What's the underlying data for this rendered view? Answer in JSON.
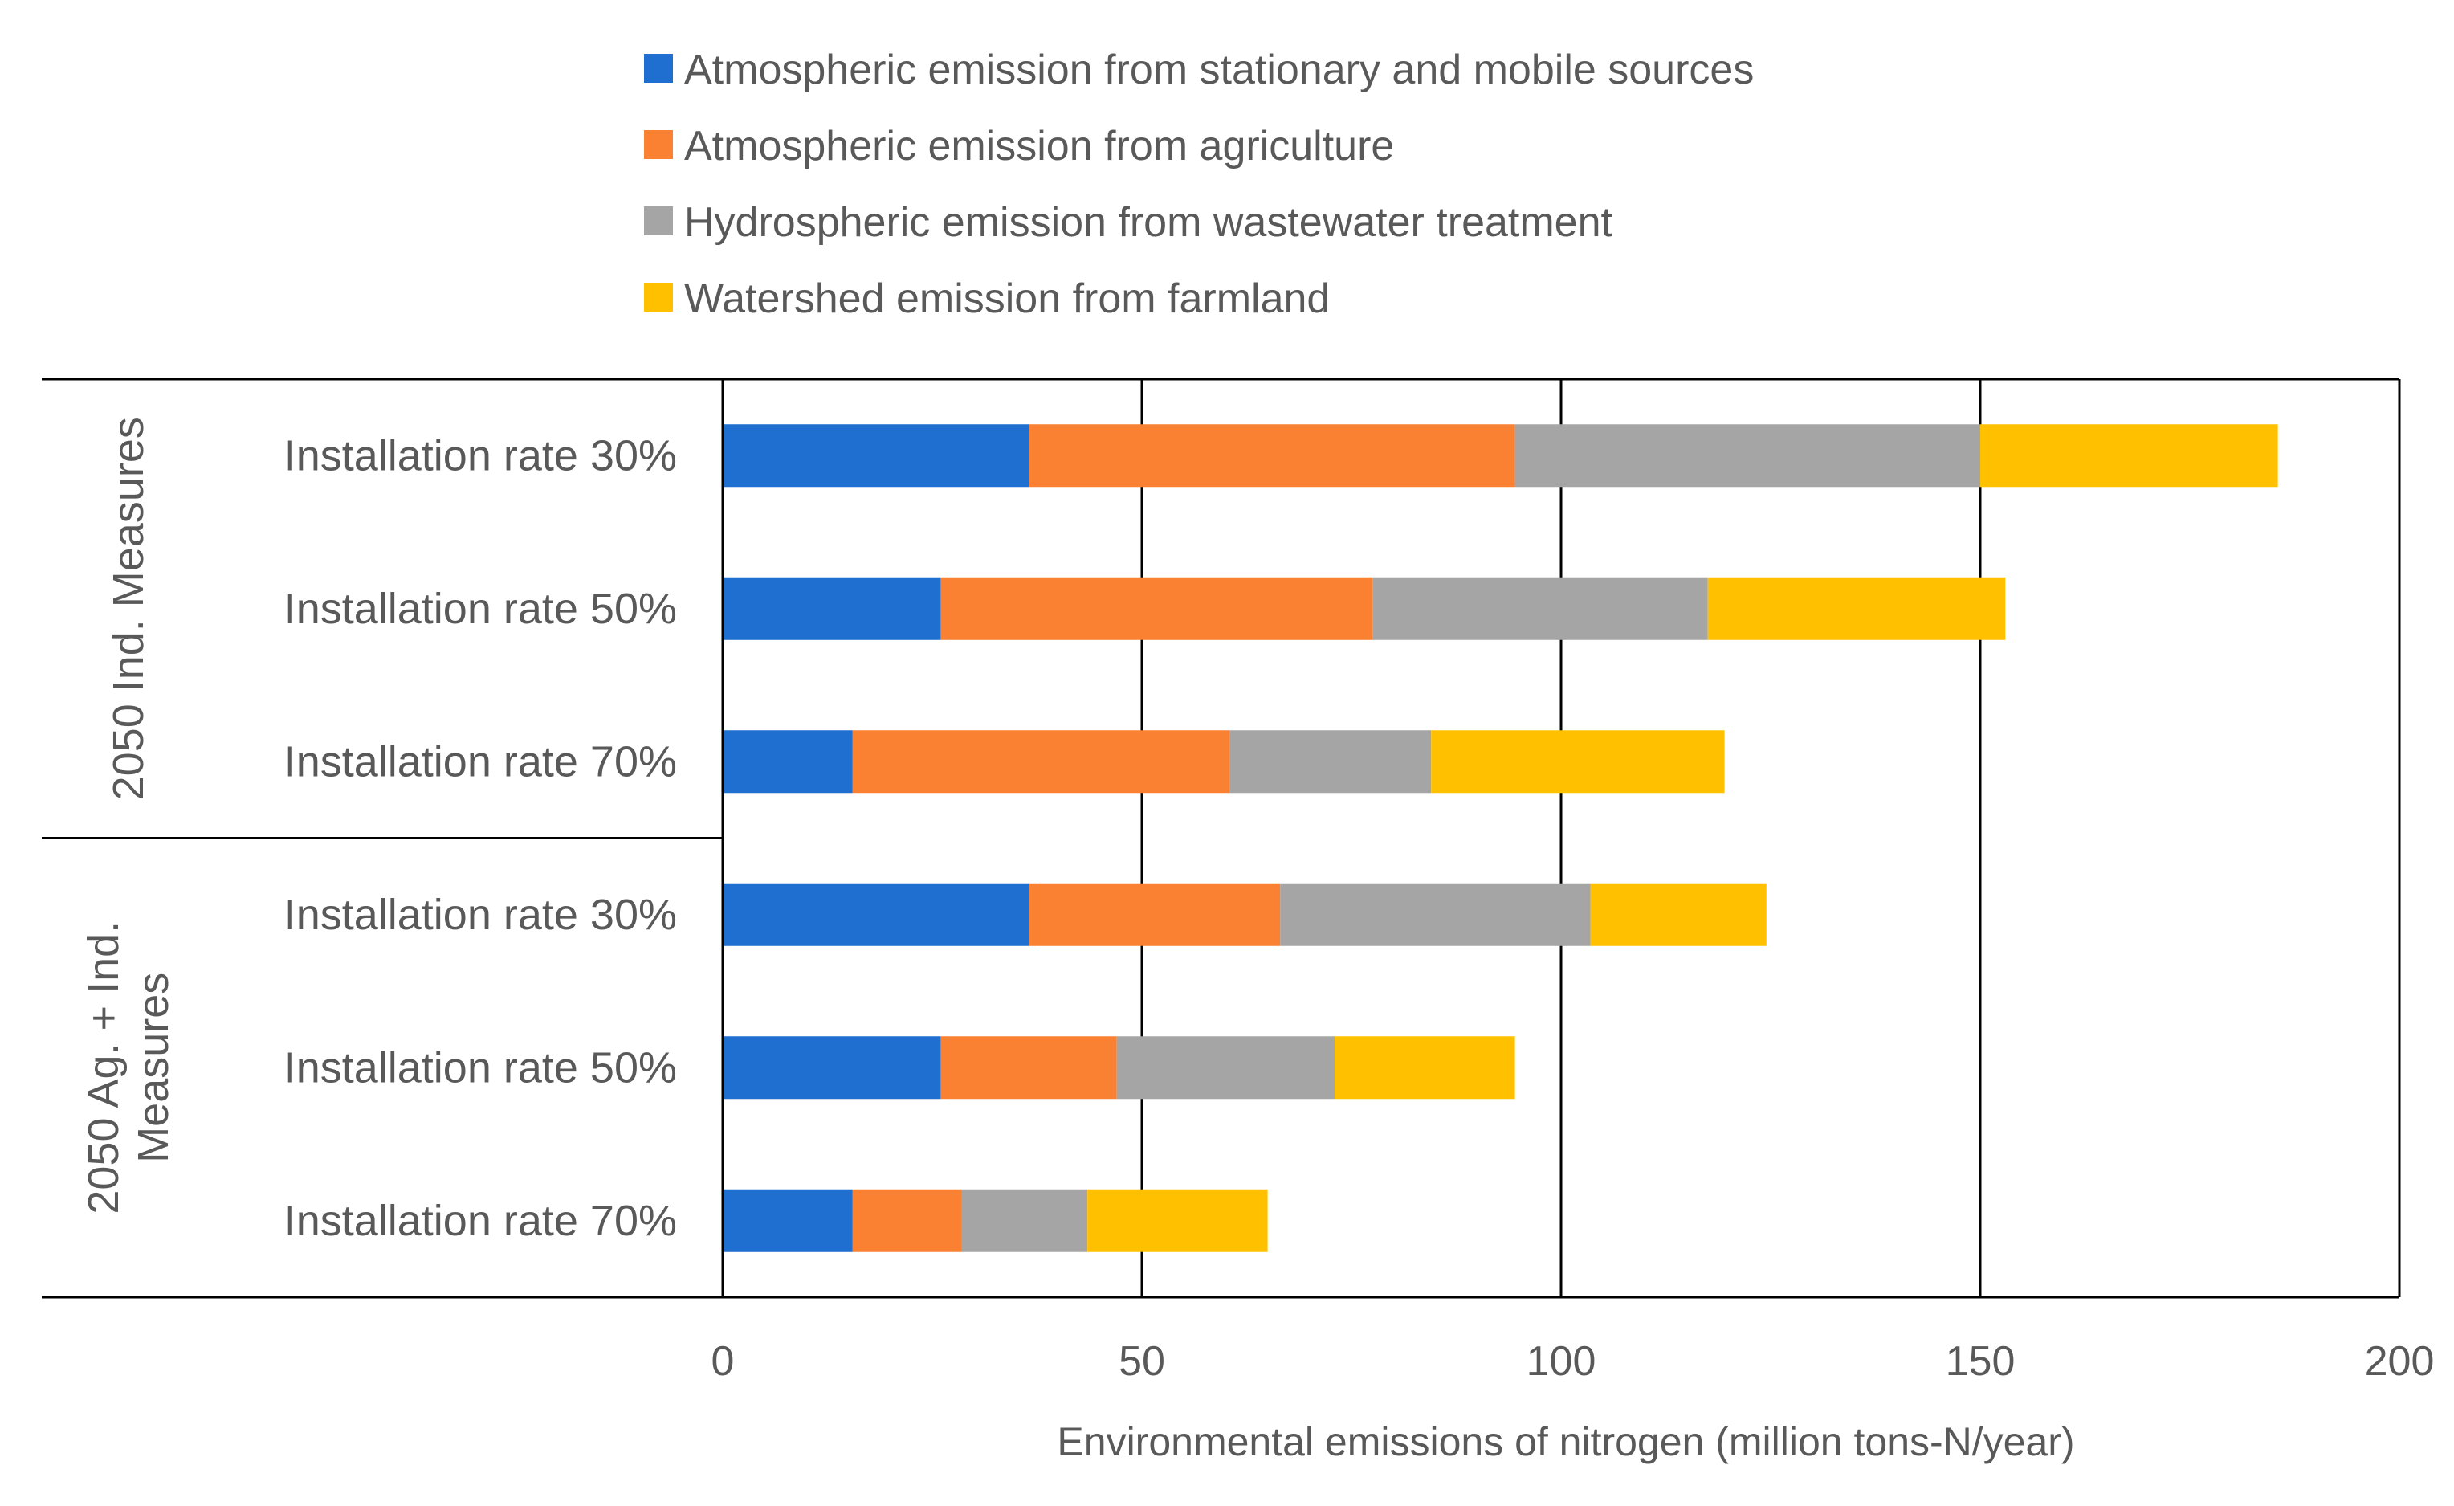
{
  "chart_data": {
    "type": "bar",
    "orientation": "horizontal",
    "stacked": true,
    "xlabel": "Environmental  emissions  of nitrogen  (million  tons-N/year)",
    "xlim": [
      0,
      200
    ],
    "xticks": [
      0,
      50,
      100,
      150,
      200
    ],
    "grid": true,
    "legend_position": "top",
    "groups": [
      {
        "label": "2050 Ind. Measures",
        "label_lines": [
          "2050 Ind. Measures"
        ]
      },
      {
        "label": "2050 Ag. + Ind. Measures",
        "label_lines": [
          "2050 Ag. + Ind.",
          "Measures"
        ]
      }
    ],
    "categories": [
      {
        "label": "Installation rate 30%",
        "group": 0
      },
      {
        "label": "Installation rate 50%",
        "group": 0
      },
      {
        "label": "Installation rate 70%",
        "group": 0
      },
      {
        "label": "Installation rate 30%",
        "group": 1
      },
      {
        "label": "Installation rate 50%",
        "group": 1
      },
      {
        "label": "Installation rate 70%",
        "group": 1
      }
    ],
    "series": [
      {
        "name": "Atmospheric emission from stationary and mobile sources",
        "color": "#1F6FD0",
        "values": [
          36.5,
          26,
          15.5,
          36.5,
          26,
          15.5
        ]
      },
      {
        "name": "Atmospheric emission from agriculture",
        "color": "#F98131",
        "values": [
          58,
          51.5,
          45,
          30,
          21,
          13
        ]
      },
      {
        "name": "Hydrospheric emission from  wastewater treatment",
        "color": "#A5A5A5",
        "values": [
          55.5,
          40,
          24,
          37,
          26,
          15
        ]
      },
      {
        "name": "Watershed emission from farmland",
        "color": "#FFC000",
        "values": [
          35.5,
          35.5,
          35,
          21,
          21.5,
          21.5
        ]
      }
    ]
  }
}
